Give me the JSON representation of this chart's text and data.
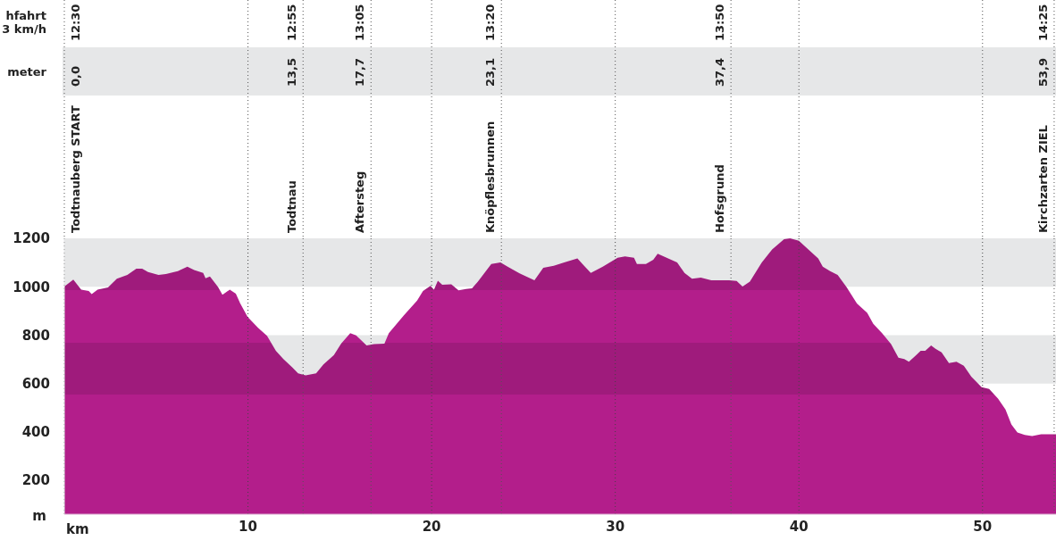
{
  "chart_data": {
    "type": "area",
    "x": [
      0,
      0.19,
      0.49,
      0.92,
      1.33,
      1.49,
      1.81,
      2.38,
      2.86,
      3.43,
      3.92,
      4.24,
      4.56,
      5.13,
      5.53,
      6.18,
      6.7,
      7.07,
      7.56,
      7.69,
      7.93,
      8.37,
      8.61,
      9.01,
      9.34,
      9.58,
      9.98,
      10.55,
      11.04,
      11.52,
      11.93,
      12.41,
      12.73,
      13.14,
      13.71,
      14.11,
      14.68,
      15.08,
      15.57,
      15.89,
      16.46,
      16.86,
      17.43,
      17.67,
      18.48,
      19.21,
      19.53,
      19.94,
      20.13,
      20.34,
      20.58,
      21.07,
      21.47,
      21.88,
      22.2,
      22.52,
      23.25,
      23.75,
      24.14,
      24.79,
      25.6,
      26.08,
      26.65,
      27.22,
      27.94,
      28.27,
      28.67,
      29.32,
      30.13,
      30.53,
      31.02,
      31.18,
      31.67,
      32.07,
      32.31,
      32.88,
      33.37,
      33.77,
      34.18,
      34.66,
      35.23,
      36.2,
      36.61,
      36.93,
      37.33,
      37.98,
      38.54,
      39.19,
      39.52,
      40,
      40.49,
      41.05,
      41.3,
      41.7,
      42.11,
      42.59,
      43.16,
      43.72,
      44.05,
      44.53,
      45.02,
      45.42,
      45.74,
      45.99,
      46.39,
      46.63,
      46.88,
      47.2,
      47.44,
      47.77,
      48.17,
      48.58,
      48.98,
      49.39,
      49.95,
      50.36,
      50.84,
      51.25,
      51.57,
      51.9,
      52.3,
      52.7,
      53.19,
      53.84,
      54
    ],
    "series": [
      {
        "color": "#b31e8b",
        "values": [
          1001,
          1012,
          1029,
          988,
          982,
          969,
          988,
          997,
          1033,
          1049,
          1075,
          1075,
          1061,
          1049,
          1052,
          1064,
          1083,
          1069,
          1057,
          1035,
          1042,
          999,
          967,
          988,
          971,
          931,
          875,
          830,
          797,
          735,
          701,
          667,
          642,
          634,
          642,
          679,
          718,
          766,
          808,
          799,
          757,
          763,
          765,
          808,
          881,
          943,
          982,
          1004,
          988,
          1025,
          1008,
          1010,
          985,
          991,
          993,
          1021,
          1094,
          1100,
          1083,
          1055,
          1027,
          1078,
          1087,
          1100,
          1117,
          1089,
          1057,
          1083,
          1120,
          1125,
          1120,
          1094,
          1094,
          1111,
          1136,
          1117,
          1100,
          1057,
          1033,
          1038,
          1027,
          1027,
          1024,
          1001,
          1021,
          1100,
          1154,
          1196,
          1200,
          1190,
          1156,
          1117,
          1083,
          1064,
          1049,
          999,
          931,
          892,
          847,
          808,
          763,
          707,
          701,
          690,
          718,
          735,
          735,
          757,
          743,
          729,
          684,
          690,
          673,
          628,
          585,
          577,
          538,
          493,
          431,
          398,
          387,
          383,
          390,
          390,
          390
        ]
      }
    ],
    "xlim": [
      0,
      54
    ],
    "xticks": [
      10,
      20,
      30,
      40,
      50
    ],
    "xlabel": "km",
    "ylim": [
      60,
      1200
    ],
    "yticks": [
      200,
      400,
      600,
      800,
      1000,
      1200
    ],
    "ylabel": "m",
    "grid": "x",
    "line_style": "dotted",
    "bands": [
      {
        "axis": "y",
        "from": 1000,
        "to": 1200,
        "color": "#e6e7e8"
      },
      {
        "axis": "y",
        "from": 600,
        "to": 800,
        "color": "#e6e7e8"
      }
    ],
    "ref_lines": [
      {
        "axis": "x",
        "value": 0,
        "label": "Todtnauberg START",
        "color": "#555555",
        "line_style": "dotted"
      },
      {
        "axis": "x",
        "value": 13,
        "label": "Todtnau",
        "color": "#555555",
        "line_style": "dotted"
      },
      {
        "axis": "x",
        "value": 16.7,
        "label": "Aftersteg",
        "color": "#555555",
        "line_style": "dotted"
      },
      {
        "axis": "x",
        "value": 23.8,
        "label": "Knöpflesbrunnen",
        "color": "#555555",
        "line_style": "dotted"
      },
      {
        "axis": "x",
        "value": 36.3,
        "label": "Hofsgrund",
        "color": "#555555",
        "line_style": "dotted"
      },
      {
        "axis": "x",
        "value": 53.9,
        "label": "Kirchzarten ZIEL",
        "color": "#555555",
        "line_style": "dotted"
      }
    ],
    "annotations": [
      "hfahrt\n3 km/h",
      "meter",
      "12:30",
      "12:55",
      "13:05",
      "13:20",
      "13:50",
      "14:25",
      "0,0",
      "13,5",
      "17,7",
      "23,1",
      "37,4",
      "53,9"
    ]
  }
}
